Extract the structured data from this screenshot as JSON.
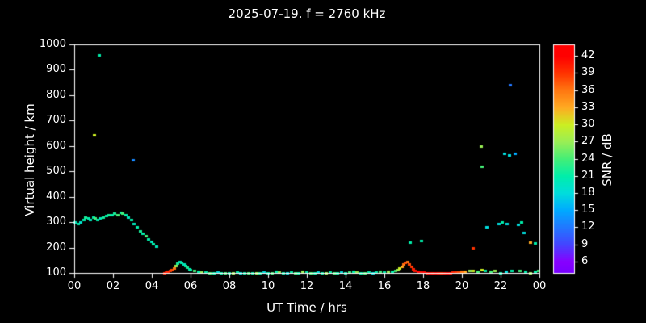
{
  "chart_data": {
    "type": "scatter",
    "title": "2025-07-19. f = 2760 kHz",
    "xlabel": "UT Time / hrs",
    "ylabel": "Virtual height / km",
    "colorbar_label": "SNR / dB",
    "xlim": [
      0,
      24
    ],
    "ylim": [
      100,
      1000
    ],
    "x_tick_values": [
      0,
      2,
      4,
      6,
      8,
      10,
      12,
      14,
      16,
      18,
      20,
      22,
      24
    ],
    "x_tick_labels": [
      "00",
      "02",
      "04",
      "06",
      "08",
      "10",
      "12",
      "14",
      "16",
      "18",
      "20",
      "22",
      "00"
    ],
    "y_tick_values": [
      100,
      200,
      300,
      400,
      500,
      600,
      700,
      800,
      900,
      1000
    ],
    "y_tick_labels": [
      "100",
      "200",
      "300",
      "400",
      "500",
      "600",
      "700",
      "800",
      "900",
      "1000"
    ],
    "colorbar_tick_values": [
      6,
      9,
      12,
      15,
      18,
      21,
      24,
      27,
      30,
      33,
      36,
      39,
      42
    ],
    "colorbar_tick_labels": [
      "6",
      "9",
      "12",
      "15",
      "18",
      "21",
      "24",
      "27",
      "30",
      "33",
      "36",
      "39",
      "42"
    ],
    "colorbar_range": [
      4,
      44
    ],
    "colormap": [
      {
        "v": 4,
        "c": "#7700ff"
      },
      {
        "v": 6,
        "c": "#8800ff"
      },
      {
        "v": 9,
        "c": "#4444ff"
      },
      {
        "v": 12,
        "c": "#2277ff"
      },
      {
        "v": 15,
        "c": "#00aaff"
      },
      {
        "v": 18,
        "c": "#00dddd"
      },
      {
        "v": 21,
        "c": "#00eeaa"
      },
      {
        "v": 24,
        "c": "#44ee77"
      },
      {
        "v": 27,
        "c": "#99ee55"
      },
      {
        "v": 30,
        "c": "#ccee22"
      },
      {
        "v": 33,
        "c": "#ffaa22"
      },
      {
        "v": 36,
        "c": "#ff7711"
      },
      {
        "v": 39,
        "c": "#ff3300"
      },
      {
        "v": 42,
        "c": "#ff0000"
      },
      {
        "v": 44,
        "c": "#ff0000"
      }
    ],
    "points": [
      [
        0.05,
        300,
        20
      ],
      [
        0.2,
        295,
        21
      ],
      [
        0.35,
        300,
        19
      ],
      [
        0.5,
        310,
        21
      ],
      [
        0.6,
        320,
        22
      ],
      [
        0.75,
        315,
        21
      ],
      [
        0.85,
        310,
        20
      ],
      [
        1.0,
        320,
        21
      ],
      [
        1.1,
        315,
        24
      ],
      [
        1.2,
        310,
        21
      ],
      [
        1.35,
        315,
        20
      ],
      [
        1.5,
        320,
        22
      ],
      [
        1.65,
        325,
        21
      ],
      [
        1.8,
        330,
        22
      ],
      [
        1.95,
        330,
        21
      ],
      [
        2.1,
        335,
        22
      ],
      [
        2.25,
        330,
        24
      ],
      [
        2.4,
        340,
        21
      ],
      [
        2.5,
        335,
        24
      ],
      [
        2.65,
        330,
        21
      ],
      [
        2.8,
        320,
        20
      ],
      [
        2.95,
        310,
        21
      ],
      [
        3.1,
        295,
        20
      ],
      [
        3.25,
        280,
        21
      ],
      [
        3.4,
        265,
        22
      ],
      [
        3.55,
        255,
        21
      ],
      [
        3.7,
        245,
        24
      ],
      [
        3.85,
        235,
        21
      ],
      [
        4.0,
        225,
        20
      ],
      [
        4.1,
        215,
        21
      ],
      [
        4.25,
        205,
        20
      ],
      [
        1.05,
        645,
        30
      ],
      [
        1.3,
        960,
        21
      ],
      [
        3.05,
        545,
        13
      ],
      [
        4.65,
        100,
        40
      ],
      [
        4.75,
        102,
        41
      ],
      [
        4.85,
        105,
        40
      ],
      [
        4.95,
        108,
        39
      ],
      [
        5.05,
        112,
        38
      ],
      [
        5.15,
        118,
        36
      ],
      [
        5.25,
        128,
        27
      ],
      [
        5.35,
        138,
        22
      ],
      [
        5.45,
        145,
        20
      ],
      [
        5.55,
        142,
        21
      ],
      [
        5.65,
        135,
        20
      ],
      [
        5.75,
        128,
        21
      ],
      [
        5.85,
        122,
        22
      ],
      [
        5.95,
        116,
        21
      ],
      [
        6.0,
        112,
        21
      ],
      [
        6.2,
        108,
        24
      ],
      [
        6.4,
        105,
        21
      ],
      [
        6.6,
        103,
        27
      ],
      [
        6.8,
        102,
        21
      ],
      [
        7.0,
        100,
        24
      ],
      [
        7.2,
        100,
        21
      ],
      [
        7.4,
        102,
        18
      ],
      [
        7.6,
        100,
        21
      ],
      [
        7.8,
        100,
        24
      ],
      [
        8.0,
        100,
        21
      ],
      [
        8.2,
        100,
        27
      ],
      [
        8.4,
        102,
        21
      ],
      [
        8.6,
        100,
        18
      ],
      [
        8.8,
        100,
        21
      ],
      [
        9.0,
        100,
        24
      ],
      [
        9.2,
        100,
        21
      ],
      [
        9.4,
        100,
        27
      ],
      [
        9.6,
        100,
        21
      ],
      [
        9.8,
        102,
        18
      ],
      [
        10.0,
        100,
        21
      ],
      [
        10.2,
        100,
        24
      ],
      [
        10.4,
        105,
        21
      ],
      [
        10.6,
        103,
        27
      ],
      [
        10.8,
        100,
        21
      ],
      [
        11.0,
        100,
        18
      ],
      [
        11.2,
        102,
        21
      ],
      [
        11.4,
        100,
        24
      ],
      [
        11.6,
        100,
        21
      ],
      [
        11.8,
        105,
        27
      ],
      [
        12.0,
        103,
        21
      ],
      [
        12.2,
        100,
        24
      ],
      [
        12.4,
        100,
        21
      ],
      [
        12.6,
        102,
        18
      ],
      [
        12.8,
        100,
        21
      ],
      [
        13.0,
        100,
        27
      ],
      [
        13.2,
        102,
        21
      ],
      [
        13.4,
        100,
        24
      ],
      [
        13.6,
        100,
        21
      ],
      [
        13.8,
        102,
        18
      ],
      [
        14.0,
        100,
        21
      ],
      [
        14.2,
        103,
        24
      ],
      [
        14.4,
        105,
        21
      ],
      [
        14.6,
        102,
        27
      ],
      [
        14.8,
        100,
        21
      ],
      [
        15.0,
        100,
        24
      ],
      [
        15.2,
        102,
        21
      ],
      [
        15.4,
        100,
        18
      ],
      [
        15.6,
        103,
        21
      ],
      [
        15.8,
        105,
        24
      ],
      [
        16.0,
        104,
        21
      ],
      [
        16.2,
        106,
        27
      ],
      [
        16.4,
        107,
        21
      ],
      [
        16.6,
        108,
        24
      ],
      [
        16.7,
        112,
        27
      ],
      [
        16.8,
        118,
        30
      ],
      [
        16.9,
        126,
        33
      ],
      [
        17.0,
        134,
        36
      ],
      [
        17.1,
        142,
        38
      ],
      [
        17.2,
        146,
        36
      ],
      [
        17.3,
        136,
        38
      ],
      [
        17.4,
        126,
        39
      ],
      [
        17.5,
        116,
        40
      ],
      [
        17.35,
        222,
        21
      ],
      [
        17.9,
        228,
        21
      ],
      [
        17.6,
        108,
        41
      ],
      [
        17.75,
        105,
        42
      ],
      [
        17.9,
        103,
        41
      ],
      [
        18.05,
        102,
        42
      ],
      [
        18.2,
        101,
        41
      ],
      [
        18.35,
        100,
        42
      ],
      [
        18.5,
        100,
        41
      ],
      [
        18.65,
        100,
        42
      ],
      [
        18.8,
        100,
        41
      ],
      [
        18.95,
        100,
        40
      ],
      [
        19.1,
        100,
        41
      ],
      [
        19.25,
        100,
        42
      ],
      [
        19.4,
        100,
        41
      ],
      [
        19.55,
        102,
        40
      ],
      [
        19.7,
        103,
        39
      ],
      [
        19.85,
        104,
        38
      ],
      [
        20.0,
        105,
        36
      ],
      [
        20.15,
        105,
        33
      ],
      [
        20.4,
        108,
        27
      ],
      [
        20.6,
        110,
        30
      ],
      [
        20.85,
        105,
        24
      ],
      [
        21.05,
        112,
        30
      ],
      [
        21.2,
        108,
        21
      ],
      [
        21.5,
        105,
        24
      ],
      [
        21.7,
        110,
        27
      ],
      [
        22.0,
        100,
        21
      ],
      [
        22.3,
        105,
        18
      ],
      [
        22.6,
        110,
        21
      ],
      [
        23.0,
        108,
        24
      ],
      [
        23.3,
        105,
        21
      ],
      [
        23.55,
        100,
        27
      ],
      [
        23.8,
        105,
        21
      ],
      [
        23.95,
        110,
        24
      ],
      [
        23.55,
        222,
        33
      ],
      [
        23.8,
        218,
        21
      ],
      [
        20.6,
        200,
        39
      ],
      [
        21.0,
        600,
        27
      ],
      [
        21.05,
        520,
        24
      ],
      [
        22.5,
        840,
        12
      ],
      [
        22.2,
        570,
        18
      ],
      [
        22.45,
        565,
        18
      ],
      [
        22.75,
        570,
        15
      ],
      [
        21.3,
        280,
        18
      ],
      [
        21.9,
        295,
        18
      ],
      [
        22.1,
        300,
        21
      ],
      [
        22.35,
        295,
        18
      ],
      [
        22.9,
        290,
        18
      ],
      [
        23.1,
        300,
        21
      ],
      [
        23.2,
        260,
        18
      ]
    ]
  }
}
